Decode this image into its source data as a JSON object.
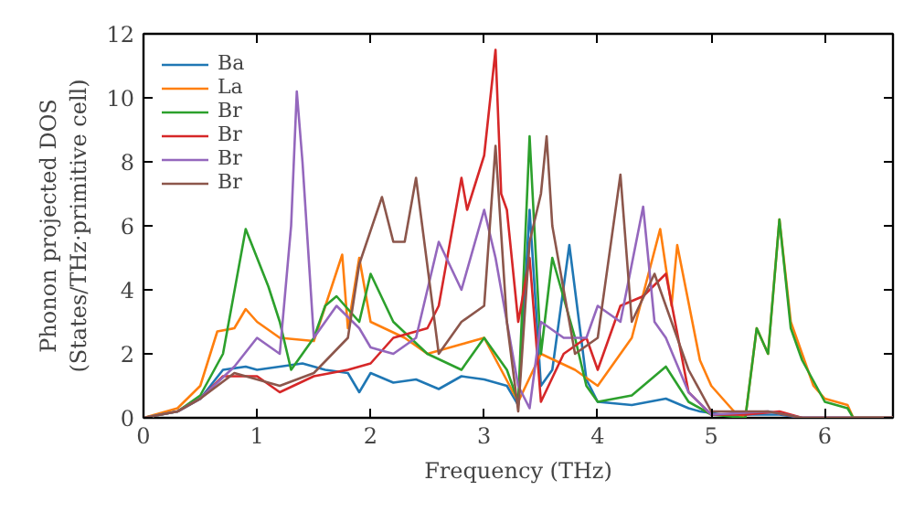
{
  "chart_data": {
    "type": "line",
    "xlabel": "Frequency (THz)",
    "ylabel": "Phonon projected DOS\n(States/THz·primitive cell)",
    "xlim": [
      0,
      6.6
    ],
    "ylim": [
      0,
      12
    ],
    "xticks": [
      0,
      1,
      2,
      3,
      4,
      5,
      6
    ],
    "yticks": [
      0,
      2,
      4,
      6,
      8,
      10,
      12
    ],
    "grid": false,
    "legend": "top left",
    "series": [
      {
        "name": "Ba",
        "color": "#1f77b4",
        "x": [
          0,
          0.3,
          0.5,
          0.7,
          0.9,
          1.0,
          1.2,
          1.4,
          1.6,
          1.8,
          1.9,
          2.0,
          2.2,
          2.4,
          2.6,
          2.8,
          3.0,
          3.2,
          3.3,
          3.4,
          3.5,
          3.6,
          3.75,
          3.9,
          4.0,
          4.3,
          4.6,
          4.8,
          4.9,
          5.1,
          5.3,
          5.6,
          5.8,
          6.6
        ],
        "values": [
          0,
          0.2,
          0.6,
          1.5,
          1.6,
          1.5,
          1.6,
          1.7,
          1.5,
          1.4,
          0.8,
          1.4,
          1.1,
          1.2,
          0.9,
          1.3,
          1.2,
          1.0,
          0.4,
          6.5,
          1.0,
          1.5,
          5.4,
          1.2,
          0.5,
          0.4,
          0.6,
          0.3,
          0.2,
          0.1,
          0.1,
          0.1,
          0,
          0
        ]
      },
      {
        "name": "La",
        "color": "#ff7f0e",
        "x": [
          0,
          0.3,
          0.5,
          0.65,
          0.8,
          0.9,
          1.0,
          1.2,
          1.5,
          1.75,
          1.8,
          1.9,
          2.0,
          2.3,
          2.5,
          2.8,
          3.0,
          3.3,
          3.5,
          3.8,
          4.0,
          4.3,
          4.55,
          4.65,
          4.7,
          4.9,
          5.0,
          5.2,
          5.3,
          5.4,
          5.5,
          5.6,
          5.7,
          5.8,
          5.9,
          6.0,
          6.2,
          6.25,
          6.6
        ],
        "values": [
          0,
          0.3,
          1.0,
          2.7,
          2.8,
          3.4,
          3.0,
          2.5,
          2.4,
          5.1,
          2.8,
          5.0,
          3.0,
          2.5,
          2.0,
          2.3,
          2.5,
          0.5,
          2.0,
          1.5,
          1.0,
          2.5,
          5.9,
          3.5,
          5.4,
          1.8,
          1.0,
          0.2,
          0,
          2.8,
          2.0,
          6.2,
          3.0,
          2.0,
          1.0,
          0.6,
          0.4,
          0,
          0
        ]
      },
      {
        "name": "Br",
        "color": "#2ca02c",
        "x": [
          0,
          0.3,
          0.5,
          0.7,
          0.9,
          1.0,
          1.1,
          1.2,
          1.3,
          1.5,
          1.6,
          1.7,
          1.9,
          2.0,
          2.2,
          2.5,
          2.8,
          3.0,
          3.2,
          3.3,
          3.4,
          3.5,
          3.6,
          3.8,
          3.9,
          4.0,
          4.3,
          4.6,
          4.8,
          5.0,
          5.3,
          5.4,
          5.5,
          5.6,
          5.7,
          5.8,
          6.0,
          6.2,
          6.25,
          6.6
        ],
        "values": [
          0,
          0.2,
          0.7,
          2.0,
          5.9,
          5.0,
          4.1,
          3.0,
          1.5,
          2.5,
          3.5,
          3.8,
          3.0,
          4.5,
          3.0,
          2.0,
          1.5,
          2.5,
          1.5,
          0.5,
          8.8,
          2.0,
          5.0,
          2.5,
          1.0,
          0.5,
          0.7,
          1.6,
          0.5,
          0.1,
          0,
          2.8,
          2.0,
          6.2,
          2.8,
          1.8,
          0.5,
          0.3,
          0,
          0
        ]
      },
      {
        "name": "Br",
        "color": "#d62728",
        "x": [
          0.5,
          0.7,
          1.0,
          1.2,
          1.5,
          1.8,
          2.0,
          2.2,
          2.5,
          2.6,
          2.8,
          2.85,
          3.0,
          3.1,
          3.15,
          3.2,
          3.3,
          3.4,
          3.5,
          3.7,
          3.9,
          4.0,
          4.2,
          4.4,
          4.6,
          4.8,
          5.0,
          5.3,
          5.6,
          5.8,
          6.6
        ],
        "values": [
          0.6,
          1.3,
          1.3,
          0.8,
          1.3,
          1.5,
          1.7,
          2.5,
          2.8,
          3.5,
          7.5,
          6.5,
          8.2,
          11.5,
          7.0,
          6.5,
          3.0,
          5.0,
          0.5,
          2.0,
          2.5,
          1.5,
          3.5,
          3.8,
          4.5,
          0.8,
          0.1,
          0.1,
          0.2,
          0,
          0
        ]
      },
      {
        "name": "Br",
        "color": "#9467bd",
        "x": [
          0,
          0.3,
          0.5,
          0.8,
          1.0,
          1.2,
          1.3,
          1.35,
          1.4,
          1.5,
          1.7,
          1.9,
          2.0,
          2.2,
          2.4,
          2.6,
          2.8,
          3.0,
          3.1,
          3.3,
          3.4,
          3.5,
          3.7,
          3.9,
          4.0,
          4.2,
          4.4,
          4.5,
          4.6,
          4.8,
          5.0,
          5.5,
          5.8,
          6.6
        ],
        "values": [
          0,
          0.2,
          0.6,
          1.6,
          2.5,
          2.0,
          6.0,
          10.2,
          8.0,
          2.5,
          3.5,
          2.8,
          2.2,
          2.0,
          2.5,
          5.5,
          4.0,
          6.5,
          5.0,
          1.0,
          0.3,
          3.0,
          2.5,
          2.5,
          3.5,
          3.0,
          6.6,
          3.0,
          2.5,
          0.8,
          0.1,
          0.2,
          0,
          0
        ]
      },
      {
        "name": "Br",
        "color": "#8c564b",
        "x": [
          0,
          0.3,
          0.5,
          0.8,
          1.0,
          1.2,
          1.5,
          1.8,
          1.9,
          2.1,
          2.2,
          2.3,
          2.4,
          2.6,
          2.8,
          3.0,
          3.1,
          3.2,
          3.3,
          3.4,
          3.5,
          3.55,
          3.6,
          3.7,
          3.8,
          4.0,
          4.2,
          4.3,
          4.5,
          4.6,
          4.8,
          5.0,
          5.5,
          5.8,
          6.6
        ],
        "values": [
          0,
          0.2,
          0.6,
          1.4,
          1.2,
          1.0,
          1.4,
          2.5,
          4.8,
          6.9,
          5.5,
          5.5,
          7.5,
          2.0,
          3.0,
          3.5,
          8.5,
          3.0,
          0.2,
          5.5,
          7.0,
          8.8,
          6.0,
          4.0,
          2.0,
          2.5,
          7.6,
          3.0,
          4.5,
          3.5,
          1.5,
          0.2,
          0.2,
          0,
          0
        ]
      }
    ]
  }
}
